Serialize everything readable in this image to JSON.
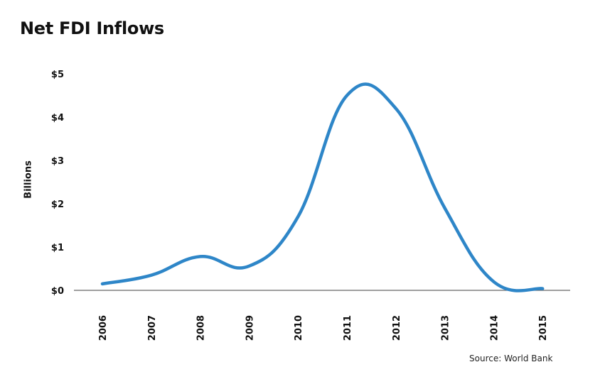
{
  "chart_data": {
    "type": "line",
    "title": "Net FDI Inflows",
    "xlabel": "",
    "ylabel": "Billions",
    "source": "Source: World Bank",
    "categories": [
      "2006",
      "2007",
      "2008",
      "2009",
      "2010",
      "2011",
      "2012",
      "2013",
      "2014",
      "2015"
    ],
    "series": [
      {
        "values": [
          0.15,
          0.35,
          0.78,
          0.56,
          1.7,
          4.5,
          4.2,
          1.9,
          0.2,
          0.04
        ]
      }
    ],
    "ylim": [
      0,
      5
    ],
    "yticks": [
      "$0",
      "$1",
      "$2",
      "$3",
      "$4",
      "$5"
    ],
    "grid": false,
    "line_color": "#2e86c8",
    "axis_color": "#666666"
  }
}
